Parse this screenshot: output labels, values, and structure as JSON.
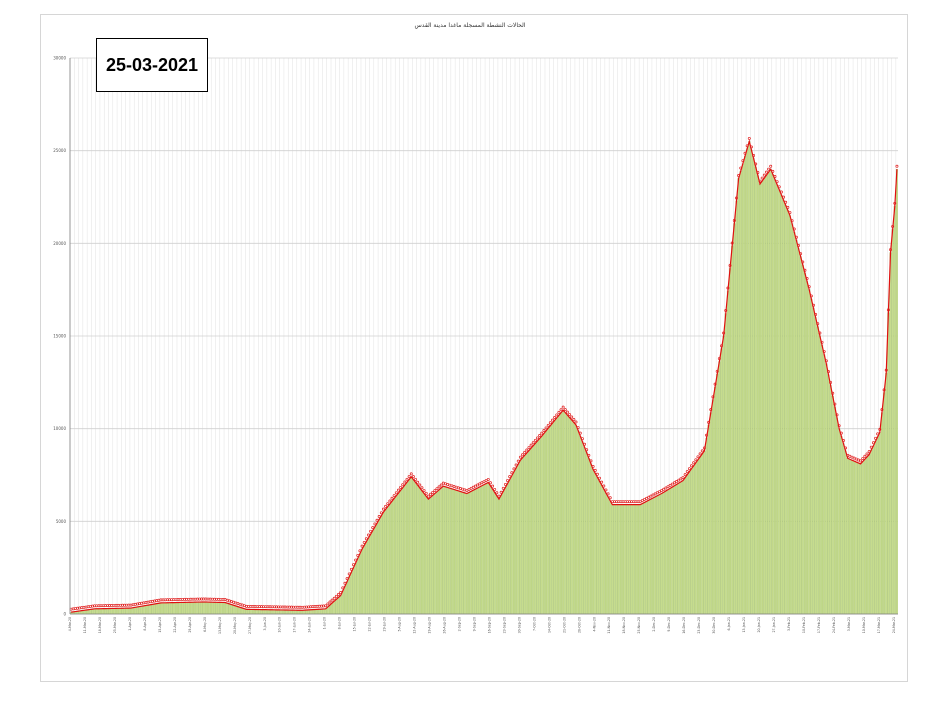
{
  "image_title": "الحالات النشطة المسجلة ماغدا مدينة القدس",
  "date_label": "25-03-2021",
  "colors": {
    "bar": "#c6dc8e",
    "bar_edge": "#8db34a",
    "line": "#e01010",
    "marker": "#e02020",
    "grid": "#d0d0d0"
  },
  "chart_data": {
    "type": "bar",
    "title": "الحالات النشطة المسجلة ماغدا مدينة القدس",
    "xlabel": "",
    "ylabel": "",
    "ylim": [
      0,
      30000
    ],
    "yticks": [
      0,
      5000,
      10000,
      15000,
      20000,
      25000,
      30000
    ],
    "grid": true,
    "legend": "none",
    "overlay": "line with markers over bars",
    "x_start": "2020-03-04",
    "x_end": "2021-03-25",
    "series": [
      {
        "values_by_date": [
          [
            "2020-03-04",
            100
          ],
          [
            "2020-03-15",
            280
          ],
          [
            "2020-04-01",
            320
          ],
          [
            "2020-04-15",
            600
          ],
          [
            "2020-05-05",
            650
          ],
          [
            "2020-05-15",
            620
          ],
          [
            "2020-05-25",
            250
          ],
          [
            "2020-06-05",
            230
          ],
          [
            "2020-06-20",
            200
          ],
          [
            "2020-07-01",
            280
          ],
          [
            "2020-07-08",
            1000
          ],
          [
            "2020-07-18",
            3500
          ],
          [
            "2020-07-28",
            5500
          ],
          [
            "2020-08-10",
            7400
          ],
          [
            "2020-08-18",
            6200
          ],
          [
            "2020-08-25",
            6900
          ],
          [
            "2020-09-05",
            6500
          ],
          [
            "2020-09-15",
            7100
          ],
          [
            "2020-09-20",
            6200
          ],
          [
            "2020-09-30",
            8300
          ],
          [
            "2020-10-10",
            9600
          ],
          [
            "2020-10-20",
            11000
          ],
          [
            "2020-10-26",
            10200
          ],
          [
            "2020-11-03",
            7800
          ],
          [
            "2020-11-12",
            5900
          ],
          [
            "2020-11-25",
            5900
          ],
          [
            "2020-12-05",
            6500
          ],
          [
            "2020-12-15",
            7200
          ],
          [
            "2020-12-25",
            8800
          ],
          [
            "2021-01-03",
            15000
          ],
          [
            "2021-01-10",
            23500
          ],
          [
            "2021-01-15",
            25500
          ],
          [
            "2021-01-20",
            23200
          ],
          [
            "2021-01-25",
            24000
          ],
          [
            "2021-02-03",
            21500
          ],
          [
            "2021-02-12",
            17500
          ],
          [
            "2021-02-20",
            13500
          ],
          [
            "2021-02-26",
            10000
          ],
          [
            "2021-03-02",
            8400
          ],
          [
            "2021-03-08",
            8100
          ],
          [
            "2021-03-12",
            8600
          ],
          [
            "2021-03-17",
            9800
          ],
          [
            "2021-03-20",
            13000
          ],
          [
            "2021-03-22",
            19500
          ],
          [
            "2021-03-24",
            22000
          ],
          [
            "2021-03-25",
            24000
          ]
        ]
      }
    ]
  }
}
